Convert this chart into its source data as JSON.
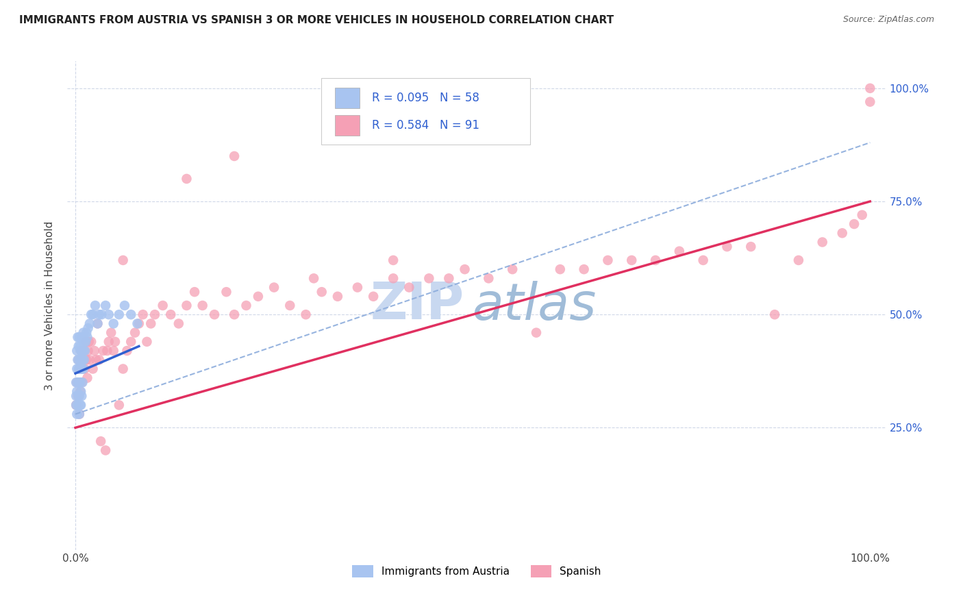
{
  "title": "IMMIGRANTS FROM AUSTRIA VS SPANISH 3 OR MORE VEHICLES IN HOUSEHOLD CORRELATION CHART",
  "source": "Source: ZipAtlas.com",
  "ylabel": "3 or more Vehicles in Household",
  "legend_labels": [
    "Immigrants from Austria",
    "Spanish"
  ],
  "blue_color": "#a8c4f0",
  "pink_color": "#f5a0b5",
  "trendline_blue_color": "#3060d0",
  "trendline_pink_color": "#e03060",
  "dashed_line_color": "#8cacdc",
  "watermark_zip_color": "#c8d8f0",
  "watermark_atlas_color": "#a0bcd8",
  "legend_text_color": "#3060d0",
  "right_axis_color": "#3060d0",
  "blue_x": [
    0.001,
    0.001,
    0.001,
    0.002,
    0.002,
    0.002,
    0.002,
    0.003,
    0.003,
    0.003,
    0.003,
    0.004,
    0.004,
    0.004,
    0.005,
    0.005,
    0.005,
    0.005,
    0.005,
    0.006,
    0.006,
    0.006,
    0.006,
    0.007,
    0.007,
    0.007,
    0.007,
    0.007,
    0.008,
    0.008,
    0.008,
    0.009,
    0.009,
    0.009,
    0.01,
    0.01,
    0.01,
    0.011,
    0.011,
    0.012,
    0.013,
    0.014,
    0.015,
    0.016,
    0.018,
    0.02,
    0.022,
    0.025,
    0.028,
    0.03,
    0.033,
    0.038,
    0.042,
    0.048,
    0.055,
    0.062,
    0.07,
    0.078
  ],
  "blue_y": [
    0.3,
    0.32,
    0.35,
    0.28,
    0.33,
    0.38,
    0.42,
    0.3,
    0.35,
    0.4,
    0.45,
    0.32,
    0.38,
    0.43,
    0.28,
    0.32,
    0.35,
    0.4,
    0.45,
    0.3,
    0.35,
    0.38,
    0.43,
    0.3,
    0.33,
    0.38,
    0.4,
    0.42,
    0.32,
    0.38,
    0.42,
    0.35,
    0.4,
    0.45,
    0.38,
    0.42,
    0.46,
    0.4,
    0.44,
    0.42,
    0.44,
    0.46,
    0.45,
    0.47,
    0.48,
    0.5,
    0.5,
    0.52,
    0.48,
    0.5,
    0.5,
    0.52,
    0.5,
    0.48,
    0.5,
    0.52,
    0.5,
    0.48
  ],
  "pink_x": [
    0.001,
    0.002,
    0.003,
    0.004,
    0.005,
    0.005,
    0.006,
    0.007,
    0.008,
    0.009,
    0.01,
    0.011,
    0.012,
    0.013,
    0.014,
    0.015,
    0.016,
    0.017,
    0.018,
    0.02,
    0.022,
    0.024,
    0.026,
    0.028,
    0.03,
    0.032,
    0.035,
    0.038,
    0.04,
    0.042,
    0.045,
    0.048,
    0.05,
    0.055,
    0.06,
    0.065,
    0.07,
    0.075,
    0.08,
    0.085,
    0.09,
    0.095,
    0.1,
    0.11,
    0.12,
    0.13,
    0.14,
    0.15,
    0.16,
    0.175,
    0.19,
    0.2,
    0.215,
    0.23,
    0.25,
    0.27,
    0.29,
    0.31,
    0.33,
    0.355,
    0.375,
    0.4,
    0.42,
    0.445,
    0.47,
    0.49,
    0.52,
    0.55,
    0.58,
    0.61,
    0.64,
    0.67,
    0.7,
    0.73,
    0.76,
    0.79,
    0.82,
    0.85,
    0.88,
    0.91,
    0.94,
    0.965,
    0.98,
    0.99,
    0.2,
    0.3,
    0.4,
    0.14,
    0.06,
    1.0,
    1.0
  ],
  "pink_y": [
    0.3,
    0.35,
    0.32,
    0.4,
    0.28,
    0.38,
    0.33,
    0.42,
    0.35,
    0.38,
    0.4,
    0.42,
    0.38,
    0.44,
    0.4,
    0.36,
    0.42,
    0.44,
    0.4,
    0.44,
    0.38,
    0.42,
    0.4,
    0.48,
    0.4,
    0.22,
    0.42,
    0.2,
    0.42,
    0.44,
    0.46,
    0.42,
    0.44,
    0.3,
    0.38,
    0.42,
    0.44,
    0.46,
    0.48,
    0.5,
    0.44,
    0.48,
    0.5,
    0.52,
    0.5,
    0.48,
    0.52,
    0.55,
    0.52,
    0.5,
    0.55,
    0.5,
    0.52,
    0.54,
    0.56,
    0.52,
    0.5,
    0.55,
    0.54,
    0.56,
    0.54,
    0.58,
    0.56,
    0.58,
    0.58,
    0.6,
    0.58,
    0.6,
    0.46,
    0.6,
    0.6,
    0.62,
    0.62,
    0.62,
    0.64,
    0.62,
    0.65,
    0.65,
    0.5,
    0.62,
    0.66,
    0.68,
    0.7,
    0.72,
    0.85,
    0.58,
    0.62,
    0.8,
    0.62,
    0.97,
    1.0
  ]
}
